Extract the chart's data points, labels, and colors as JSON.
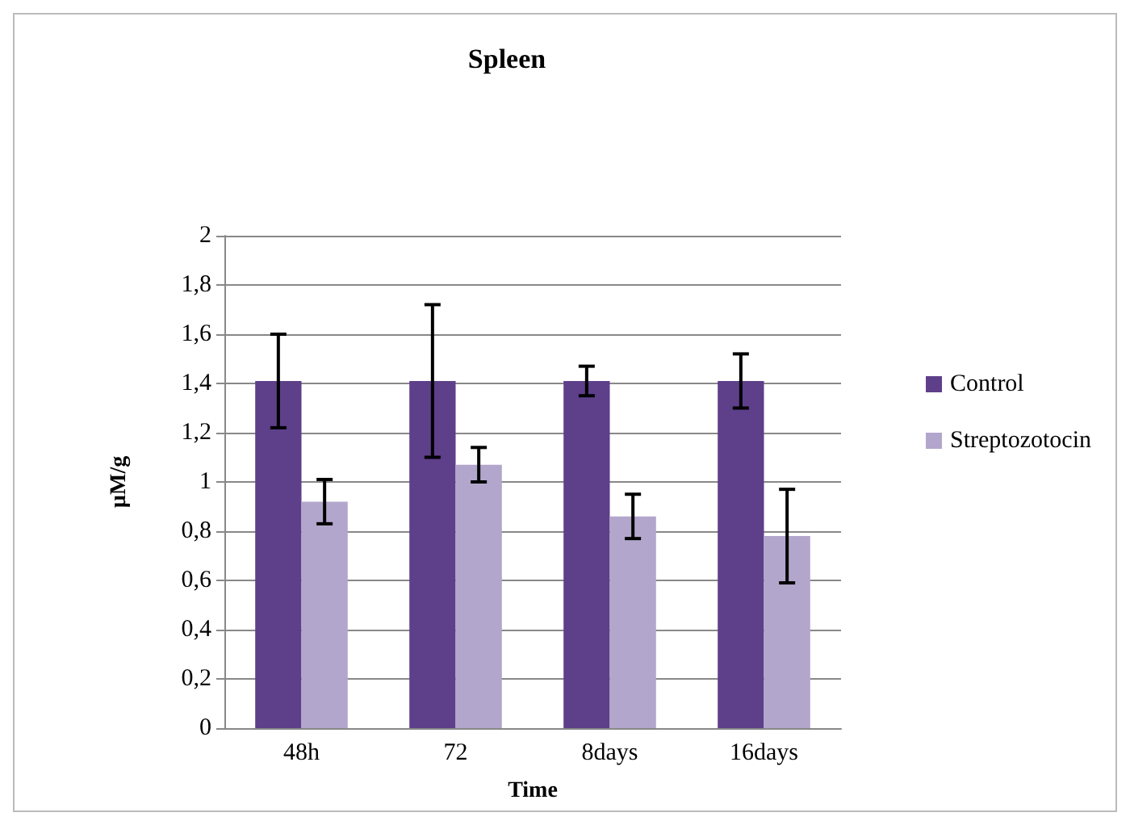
{
  "chart_data": {
    "type": "bar",
    "title": "Spleen",
    "xlabel": "Time",
    "ylabel": "µM/g",
    "categories": [
      "48h",
      "72",
      "8days",
      "16days"
    ],
    "series": [
      {
        "name": "Control",
        "color": "#5e3f8a",
        "values": [
          1.41,
          1.41,
          1.41,
          1.41
        ],
        "errors": [
          [
            1.22,
            1.6
          ],
          [
            1.1,
            1.72
          ],
          [
            1.35,
            1.47
          ],
          [
            1.3,
            1.52
          ]
        ]
      },
      {
        "name": "Streptozotocin",
        "color": "#b3a6cc",
        "values": [
          0.92,
          1.07,
          0.86,
          0.78
        ],
        "errors": [
          [
            0.83,
            1.01
          ],
          [
            1.0,
            1.14
          ],
          [
            0.77,
            0.95
          ],
          [
            0.59,
            0.97
          ]
        ]
      }
    ],
    "ylim": [
      0,
      2
    ],
    "yticks": [
      0,
      {
        "value": 0.2,
        "label": "0,2"
      },
      {
        "value": 0.4,
        "label": "0,4"
      },
      {
        "value": 0.6,
        "label": "0,6"
      },
      {
        "value": 0.8,
        "label": "0,8"
      },
      1,
      {
        "value": 1.2,
        "label": "1,2"
      },
      {
        "value": 1.4,
        "label": "1,4"
      },
      {
        "value": 1.6,
        "label": "1,6"
      },
      {
        "value": 1.8,
        "label": "1,8"
      },
      2
    ],
    "grid": "y",
    "legend": "right"
  }
}
